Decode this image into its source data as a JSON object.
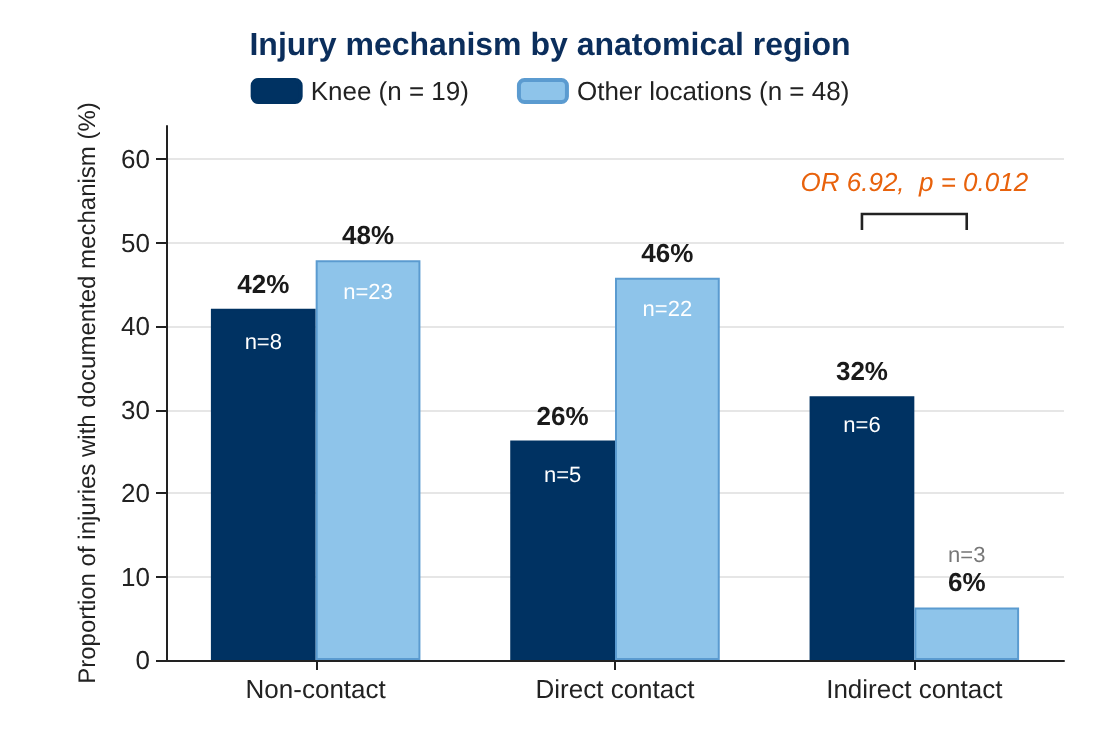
{
  "chart_data": {
    "type": "bar",
    "title": "Injury mechanism by anatomical region",
    "ylabel": "Proportion of injuries with documented mechanism (%)",
    "categories": [
      "Non-contact",
      "Direct contact",
      "Indirect contact"
    ],
    "series": [
      {
        "name": "Knee (n = 19)",
        "color": "#003262",
        "values": [
          42.1,
          26.3,
          31.6
        ],
        "value_labels": [
          "42%",
          "26%",
          "32%"
        ]
      },
      {
        "name": "Other locations (n = 48)",
        "color": "#8ec4ea",
        "values": [
          47.9,
          45.8,
          6.3
        ],
        "value_labels": [
          "48%",
          "46%",
          "6%"
        ]
      }
    ],
    "annotations": [
      {
        "text": "n=8",
        "x": "Non-contact",
        "y": 38
      },
      {
        "text": "n=23",
        "x": "Non-contact",
        "y": 44
      },
      {
        "text": "n=5",
        "x": "Direct contact",
        "y": 22
      },
      {
        "text": "n=22",
        "x": "Direct contact",
        "y": 42
      },
      {
        "text": "n=6",
        "x": "Indirect contact",
        "y": 28
      },
      {
        "text": "n=3",
        "x": "Indirect contact",
        "y": 12.5
      },
      "OR 6.92,  p = 0.012"
    ],
    "ylim": [
      0,
      64
    ],
    "yticks": [
      0,
      10,
      20,
      30,
      40,
      50,
      60
    ],
    "grid": "y",
    "legend": "top"
  }
}
